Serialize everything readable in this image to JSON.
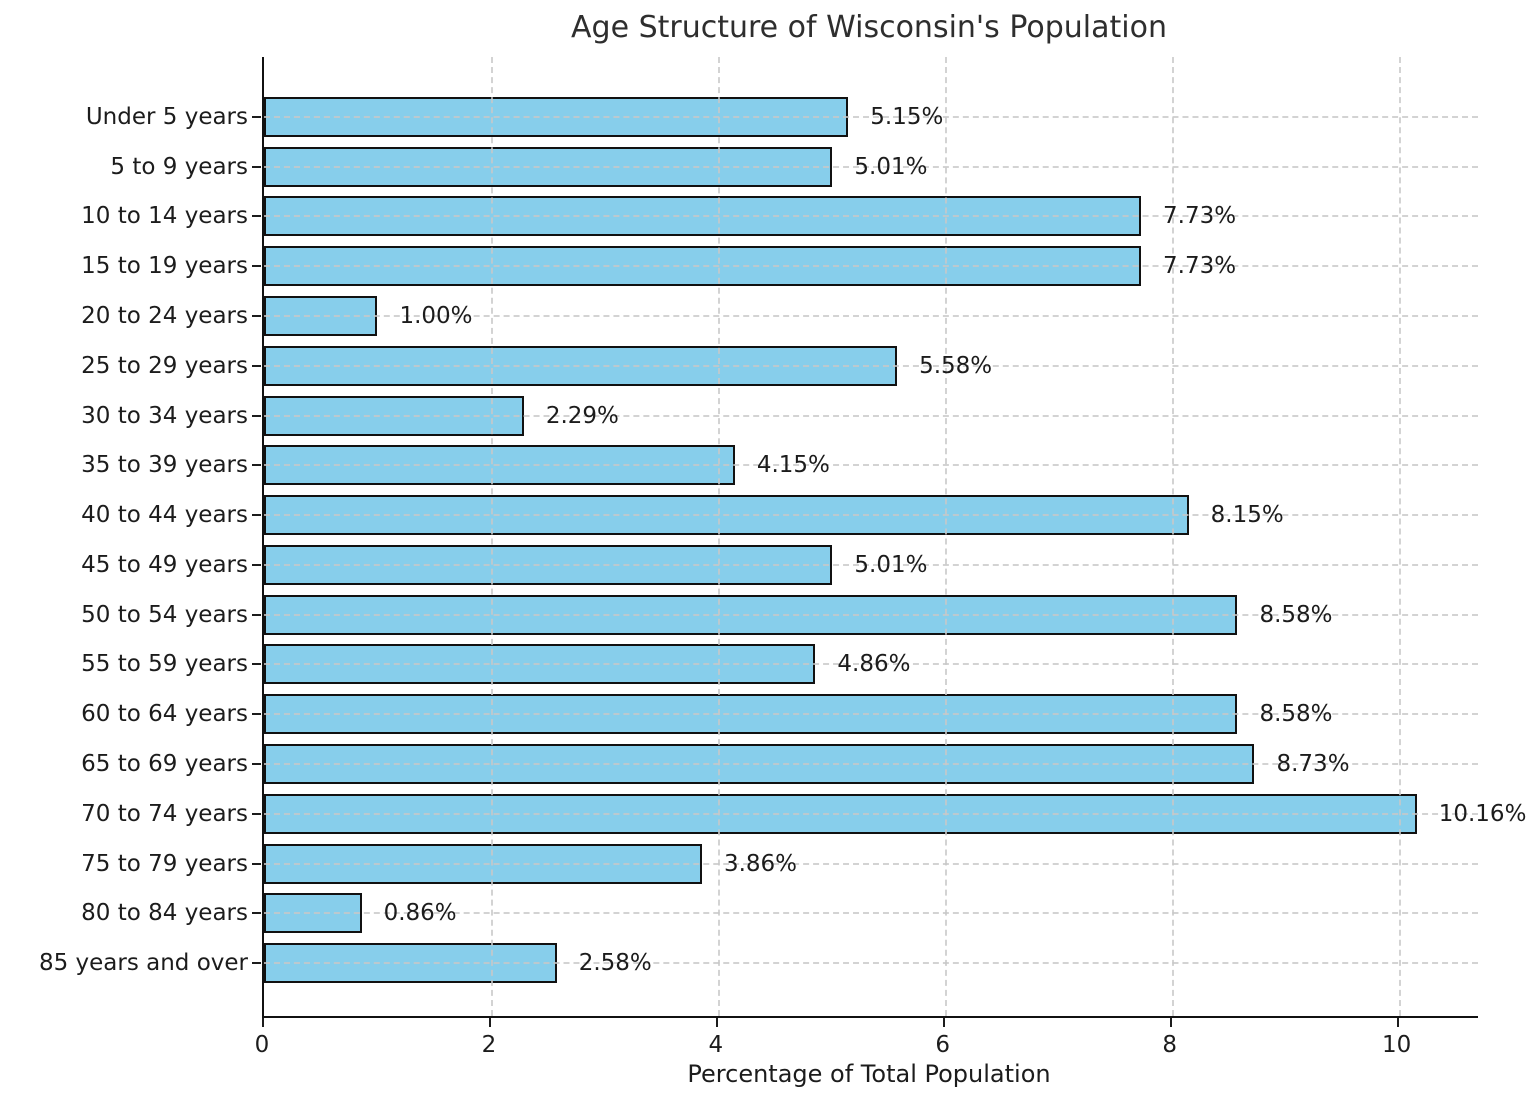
{
  "chart_data": {
    "type": "bar",
    "orientation": "horizontal",
    "title": "Age Structure of Wisconsin's Population",
    "xlabel": "Percentage of Total Population",
    "ylabel": "",
    "categories": [
      "Under 5 years",
      "5 to 9 years",
      "10 to 14 years",
      "15 to 19 years",
      "20 to 24 years",
      "25 to 29 years",
      "30 to 34 years",
      "35 to 39 years",
      "40 to 44 years",
      "45 to 49 years",
      "50 to 54 years",
      "55 to 59 years",
      "60 to 64 years",
      "65 to 69 years",
      "70 to 74 years",
      "75 to 79 years",
      "80 to 84 years",
      "85 years and over"
    ],
    "values": [
      5.15,
      5.01,
      7.73,
      7.73,
      1.0,
      5.58,
      2.29,
      4.15,
      8.15,
      5.01,
      8.58,
      4.86,
      8.58,
      8.73,
      10.16,
      3.86,
      0.86,
      2.58
    ],
    "value_labels": [
      "5.15%",
      "5.01%",
      "7.73%",
      "7.73%",
      "1.00%",
      "5.58%",
      "2.29%",
      "4.15%",
      "8.15%",
      "5.01%",
      "8.58%",
      "4.86%",
      "8.58%",
      "8.73%",
      "10.16%",
      "3.86%",
      "0.86%",
      "2.58%"
    ],
    "x_ticks": [
      0,
      2,
      4,
      6,
      8,
      10
    ],
    "x_tick_labels": [
      "0",
      "2",
      "4",
      "6",
      "8",
      "10"
    ],
    "xlim": [
      0,
      10.7
    ],
    "grid": "dashed, both axes, drawn over bars",
    "legend": "none",
    "colors": {
      "bar_fill": "#87CEEB",
      "bar_edge": "#111111",
      "grid": "#c9c9c9",
      "text": "#1c1c1c",
      "title_text": "#2e2e2e",
      "background": "#ffffff"
    }
  }
}
